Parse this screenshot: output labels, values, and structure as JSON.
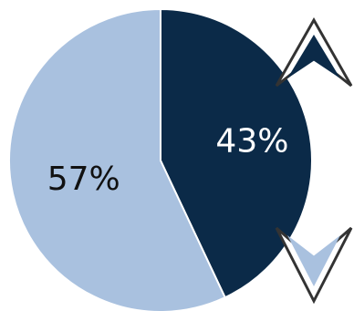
{
  "chart_data": {
    "type": "pie",
    "start_angle_deg": 0,
    "direction": "clockwise",
    "slices": [
      {
        "label": "43%",
        "value": 43,
        "color": "#0b2a48",
        "text_color": "#ffffff"
      },
      {
        "label": "57%",
        "value": 57,
        "color": "#a9c1df",
        "text_color": "#111111"
      }
    ],
    "slice_border_color": "#ffffff",
    "indicators": [
      {
        "name": "up-arrow-icon",
        "direction": "up",
        "fill": "#0b2a48",
        "outline": "#333333",
        "slice": "43%"
      },
      {
        "name": "down-arrow-icon",
        "direction": "down",
        "fill": "#a9c1df",
        "outline": "#333333",
        "slice": "57%"
      }
    ]
  }
}
